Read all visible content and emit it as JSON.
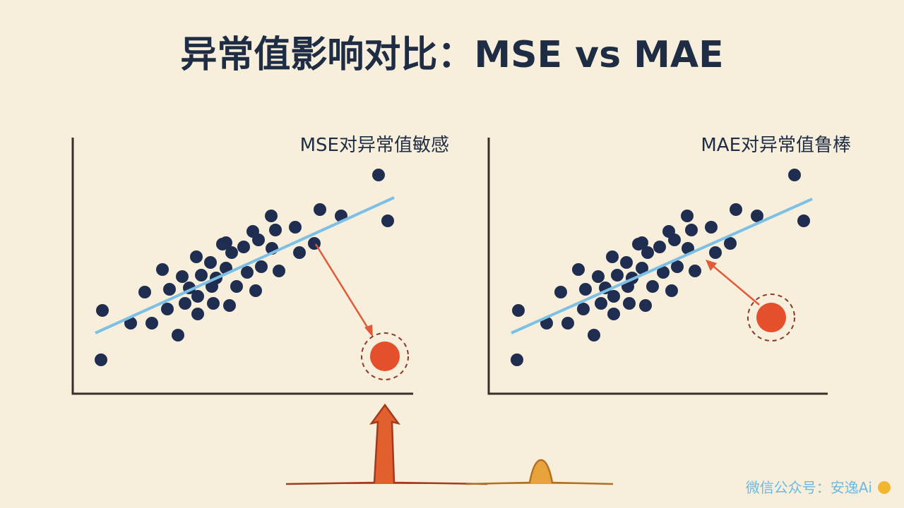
{
  "title": "异常值影响对比：MSE vs MAE",
  "panels": [
    {
      "label": "MSE对异常值敏感"
    },
    {
      "label": "MAE对异常值鲁棒"
    }
  ],
  "watermark": "微信公众号：安逸Ai"
}
